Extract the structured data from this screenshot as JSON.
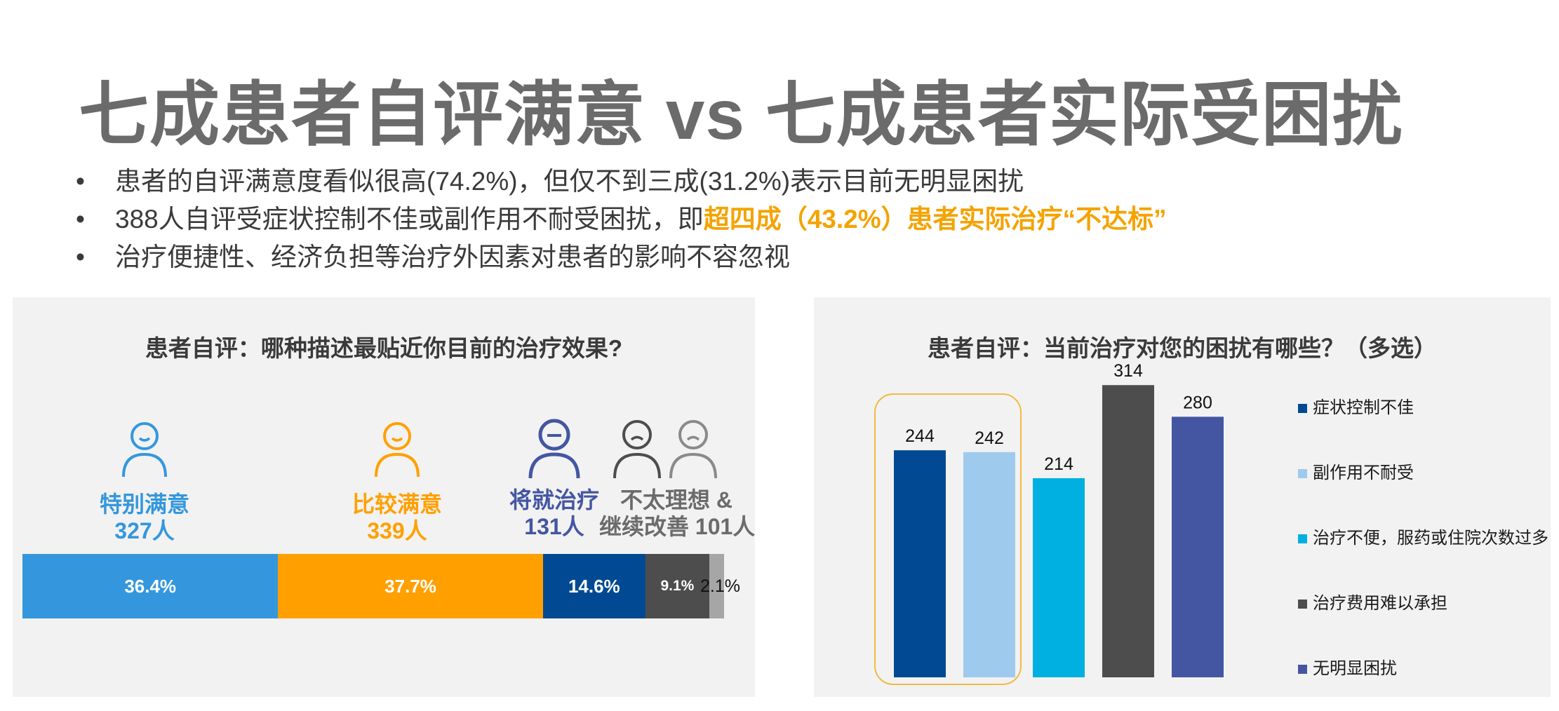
{
  "title": "七成患者自评满意 vs 七成患者实际受困扰",
  "bullets": [
    {
      "text": "患者的自评满意度看似很高(74.2%)，但仅不到三成(31.2%)表示目前无明显困扰",
      "highlight": ""
    },
    {
      "text": "388人自评受症状控制不佳或副作用不耐受困扰，即",
      "highlight": "超四成（43.2%）患者实际治疗“不达标”"
    },
    {
      "text": "治疗便捷性、经济负担等治疗外因素对患者的影响不容忽视",
      "highlight": ""
    }
  ],
  "bullet_symbol": "•",
  "colors": {
    "very_satisfied": "#3497dd",
    "fairly_satisfied": "#ffa000",
    "tolerable": "#014a93",
    "unsatisfied": "#4d4d4d",
    "unsatisfied_light": "#a6a6a6",
    "highlight": "#f4a300",
    "bar1": "#014a93",
    "bar2": "#9ecaee",
    "bar3": "#00b0e0",
    "bar4": "#4d4d4d",
    "bar5": "#4456a2",
    "highlight_box": "#f4b942"
  },
  "chart_data": [
    {
      "type": "bar",
      "orientation": "horizontal-stacked",
      "title": "患者自评：哪种描述最贴近你目前的治疗效果?",
      "groups": [
        {
          "label": "特别满意",
          "count_label": "327人",
          "percent_label": "36.4%",
          "value": 36.4,
          "icon": "smile-person-icon"
        },
        {
          "label": "比较满意",
          "count_label": "339人",
          "percent_label": "37.7%",
          "value": 37.7,
          "icon": "smile-person-icon"
        },
        {
          "label": "将就治疗",
          "count_label": "131人",
          "percent_label": "14.6%",
          "value": 14.6,
          "icon": "neutral-person-icon"
        },
        {
          "label": "不太理想 &",
          "label2": "继续改善",
          "count_label": "101人",
          "percent_label": "9.1%",
          "value": 9.1,
          "icon": "frown-person-icon"
        },
        {
          "label": "",
          "count_label": "",
          "percent_label": "2.1%",
          "value": 2.1,
          "icon": "frown-person-icon"
        }
      ]
    },
    {
      "type": "bar",
      "title": "患者自评：当前治疗对您的困扰有哪些？（多选）",
      "categories": [
        "症状控制不佳",
        "副作用不耐受",
        "治疗不便，服药或住院次数过多",
        "治疗费用难以承担",
        "无明显困扰"
      ],
      "values": [
        244,
        242,
        214,
        314,
        280
      ],
      "ylim": [
        0,
        330
      ],
      "legend_position": "right"
    }
  ]
}
